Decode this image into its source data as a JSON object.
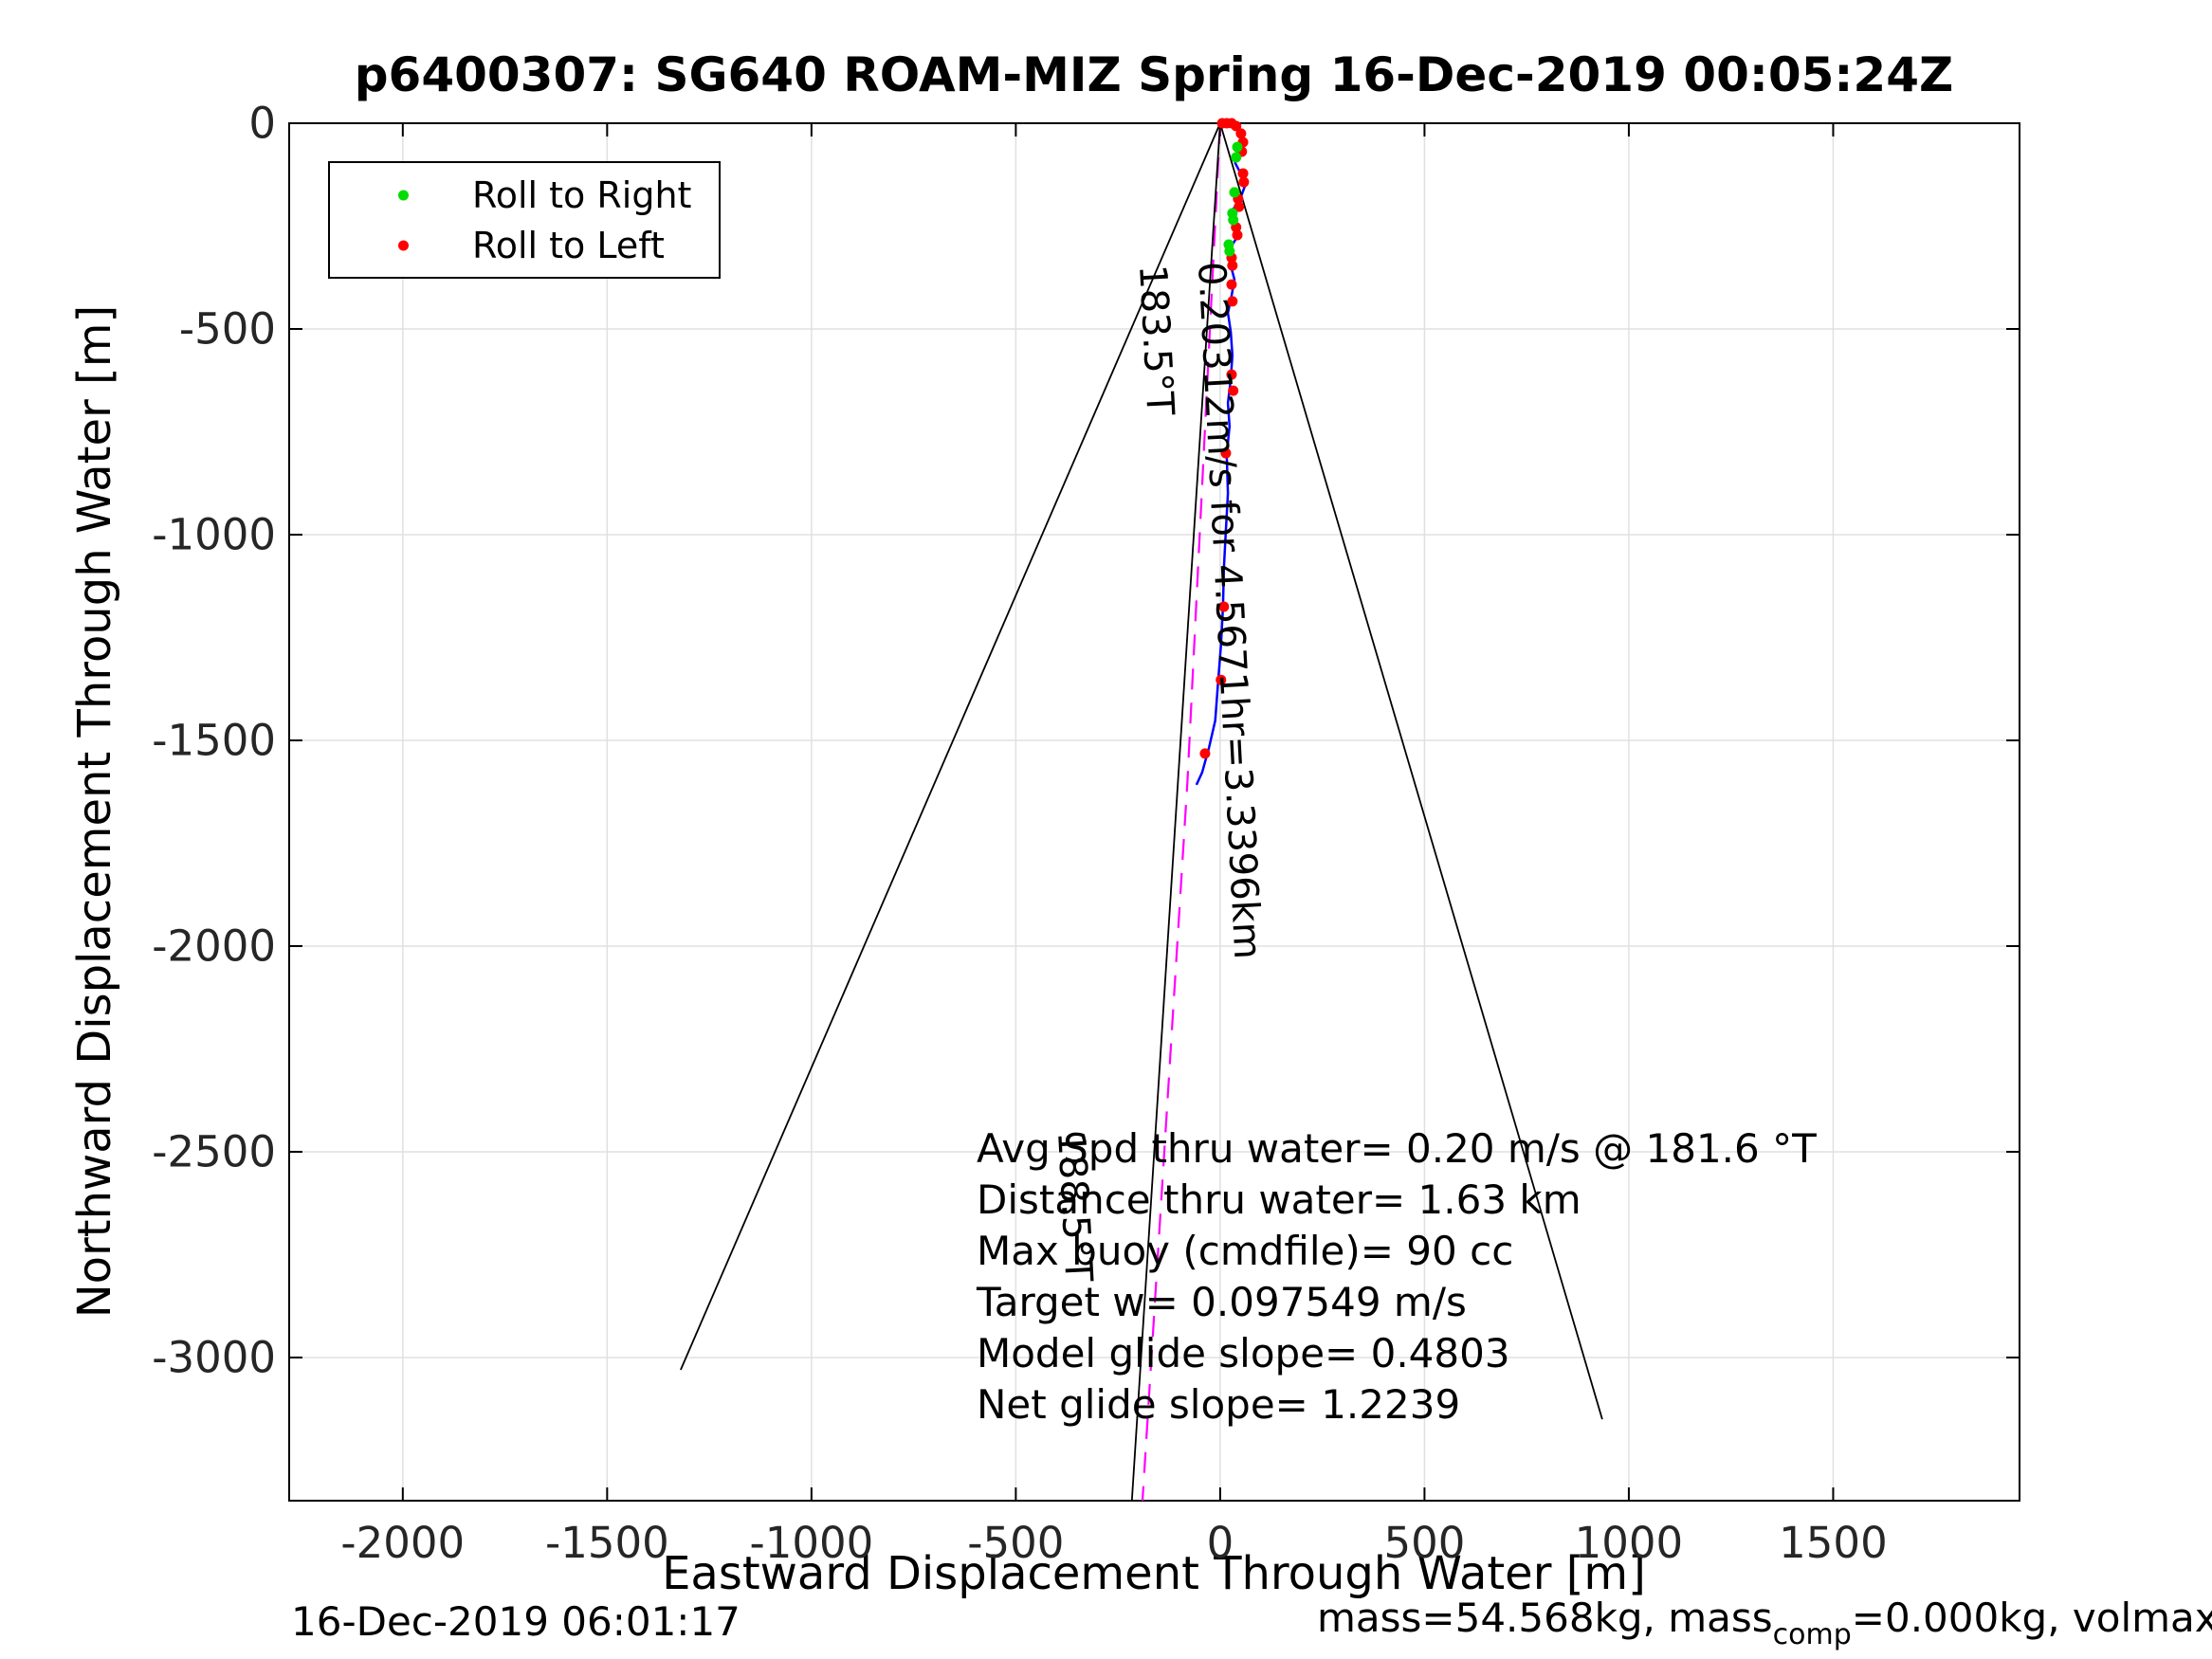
{
  "chart_data": {
    "type": "line",
    "title": "p6400307: SG640 ROAM-MIZ Spring 16-Dec-2019 00:05:24Z",
    "xlabel": "Eastward Displacement Through Water [m]",
    "ylabel": "Northward Displacement Through Water [m]",
    "xlim": [
      -2278,
      1956
    ],
    "ylim": [
      -3348,
      0
    ],
    "x_ticks": [
      -2000,
      -1500,
      -1000,
      -500,
      0,
      500,
      1000,
      1500
    ],
    "y_ticks": [
      0,
      -500,
      -1000,
      -1500,
      -2000,
      -2500,
      -3000
    ],
    "grid": true,
    "grid_color": "#e0e0e0",
    "series": [
      {
        "name": "measured-track",
        "color": "#0000ff",
        "width": 2.5,
        "dash": null,
        "points": [
          [
            0,
            0
          ],
          [
            30,
            -2
          ],
          [
            53,
            -23
          ],
          [
            58,
            -51
          ],
          [
            42,
            -69
          ],
          [
            37,
            -97
          ],
          [
            53,
            -127
          ],
          [
            60,
            -154
          ],
          [
            49,
            -184
          ],
          [
            30,
            -212
          ],
          [
            37,
            -242
          ],
          [
            46,
            -270
          ],
          [
            30,
            -295
          ],
          [
            19,
            -318
          ],
          [
            26,
            -346
          ],
          [
            35,
            -380
          ],
          [
            28,
            -419
          ],
          [
            19,
            -461
          ],
          [
            26,
            -507
          ],
          [
            30,
            -564
          ],
          [
            26,
            -622
          ],
          [
            19,
            -680
          ],
          [
            23,
            -737
          ],
          [
            16,
            -806
          ],
          [
            19,
            -899
          ],
          [
            14,
            -991
          ],
          [
            9,
            -1083
          ],
          [
            7,
            -1175
          ],
          [
            2,
            -1267
          ],
          [
            -5,
            -1359
          ],
          [
            -12,
            -1452
          ],
          [
            -28,
            -1521
          ],
          [
            -44,
            -1578
          ],
          [
            -58,
            -1608
          ]
        ]
      },
      {
        "name": "dead-reckoned-track",
        "color": "#ff00ff",
        "width": 2.2,
        "dash": "22,14",
        "points": [
          [
            0,
            0
          ],
          [
            -80,
            -1600
          ],
          [
            -190,
            -3348
          ]
        ]
      },
      {
        "name": "track-extension-line",
        "color": "#000000",
        "width": 1.8,
        "dash": null,
        "points": [
          [
            0,
            0
          ],
          [
            -216,
            -3348
          ]
        ]
      },
      {
        "name": "cone-left-line",
        "color": "#000000",
        "width": 1.8,
        "dash": null,
        "points": [
          [
            0,
            0
          ],
          [
            -1320,
            -3030
          ]
        ]
      },
      {
        "name": "cone-right-line",
        "color": "#000000",
        "width": 1.8,
        "dash": null,
        "points": [
          [
            0,
            0
          ],
          [
            935,
            -3150
          ]
        ]
      }
    ],
    "markers": [
      {
        "name": "roll-to-left-dots",
        "color": "#ff0000",
        "radius": 5.5,
        "points": [
          [
            5,
            0
          ],
          [
            16,
            0
          ],
          [
            28,
            0
          ],
          [
            39,
            -7
          ],
          [
            51,
            -25
          ],
          [
            56,
            -46
          ],
          [
            53,
            -69
          ],
          [
            56,
            -122
          ],
          [
            58,
            -143
          ],
          [
            44,
            -184
          ],
          [
            46,
            -203
          ],
          [
            39,
            -253
          ],
          [
            42,
            -272
          ],
          [
            28,
            -327
          ],
          [
            30,
            -346
          ],
          [
            28,
            -392
          ],
          [
            30,
            -433
          ],
          [
            28,
            -611
          ],
          [
            32,
            -650
          ],
          [
            14,
            -802
          ],
          [
            9,
            -1175
          ],
          [
            2,
            -1353
          ],
          [
            -37,
            -1532
          ]
        ]
      },
      {
        "name": "roll-to-right-dots",
        "color": "#00dd00",
        "radius": 5.5,
        "points": [
          [
            42,
            -58
          ],
          [
            39,
            -83
          ],
          [
            35,
            -168
          ],
          [
            30,
            -219
          ],
          [
            32,
            -235
          ],
          [
            21,
            -295
          ],
          [
            23,
            -311
          ]
        ]
      }
    ],
    "annotations": [
      {
        "name": "dive-heading-label",
        "text": "183.5°T",
        "x": -114,
        "y": -341,
        "rot": 87
      },
      {
        "name": "speed-distance-label",
        "text": "0.20312m/s for 4.5671hr=3.3396km",
        "x": 30,
        "y": -334,
        "rot": 87
      },
      {
        "name": "climb-heading-label",
        "text": "188.5°T",
        "x": -313,
        "y": -2447,
        "rot": 87
      }
    ],
    "stats_block": {
      "x": -596,
      "y": -2431,
      "lines": [
        "Avg Spd thru water=  0.20 m/s @ 181.6 °T",
        "Distance thru water=  1.63 km",
        "Max buoy (cmdfile)= 90 cc",
        "Target w= 0.097549 m/s",
        "Model glide slope= 0.4803",
        "Net glide slope= 1.2239"
      ]
    },
    "legend": {
      "position": "top-left-inside",
      "items": [
        {
          "label": "Roll to Right",
          "color": "#00dd00"
        },
        {
          "label": "Roll to Left",
          "color": "#ff0000"
        }
      ]
    }
  },
  "footer": {
    "timestamp": "16-Dec-2019 06:01:17",
    "mass_prefix": "mass=54.568kg, mass",
    "mass_sub": "comp",
    "mass_suffix": "=0.000kg, volmax"
  },
  "colors": {
    "axis": "#000000",
    "tick_text": "#262626",
    "grid": "#e0e0e0",
    "track_blue": "#0000ff",
    "track_magenta": "#ff00ff",
    "roll_right_green": "#00dd00",
    "roll_left_red": "#ff0000"
  }
}
